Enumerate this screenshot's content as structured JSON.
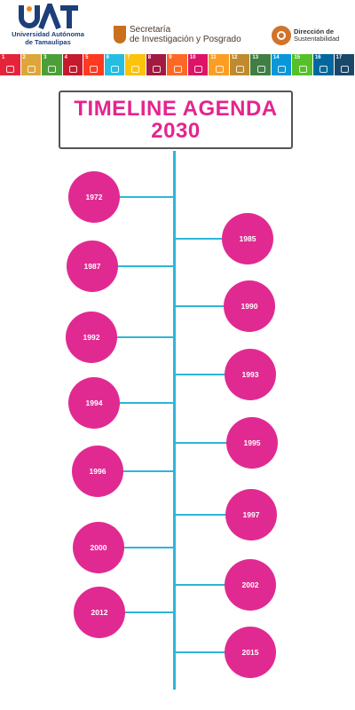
{
  "header": {
    "uat_mark": "UAT",
    "uat_name_line1": "Universidad Autónoma",
    "uat_name_line2": "de Tamaulipas",
    "secretaria_line1": "Secretaría",
    "secretaria_line2": "de Investigación y Posgrado",
    "direccion_line1": "Dirección de",
    "direccion_line2": "Sustentabilidad",
    "brand_colors": {
      "uat_blue": "#1c3f7a",
      "uat_orange": "#f08a1c",
      "secretaria_orange": "#c8701e"
    }
  },
  "sdg_goals": [
    {
      "num": "1",
      "color": "#e5243b"
    },
    {
      "num": "2",
      "color": "#dda63a"
    },
    {
      "num": "3",
      "color": "#4c9f38"
    },
    {
      "num": "4",
      "color": "#c5192d"
    },
    {
      "num": "5",
      "color": "#ff3a21"
    },
    {
      "num": "6",
      "color": "#26bde2"
    },
    {
      "num": "7",
      "color": "#fcc30b"
    },
    {
      "num": "8",
      "color": "#a21942"
    },
    {
      "num": "9",
      "color": "#fd6925"
    },
    {
      "num": "10",
      "color": "#dd1367"
    },
    {
      "num": "11",
      "color": "#fd9d24"
    },
    {
      "num": "12",
      "color": "#bf8b2e"
    },
    {
      "num": "13",
      "color": "#3f7e44"
    },
    {
      "num": "14",
      "color": "#0a97d9"
    },
    {
      "num": "15",
      "color": "#56c02b"
    },
    {
      "num": "16",
      "color": "#00689d"
    },
    {
      "num": "17",
      "color": "#19486a"
    }
  ],
  "title": {
    "line1": "TIMELINE AGENDA",
    "line2": "2030",
    "color": "#e3258f"
  },
  "timeline": {
    "axis_color": "#2db6d8",
    "bubble_color": "#e12a91",
    "left": [
      {
        "year": "1972"
      },
      {
        "year": "1987"
      },
      {
        "year": "1992"
      },
      {
        "year": "1994"
      },
      {
        "year": "1996"
      },
      {
        "year": "2000"
      },
      {
        "year": "2012"
      }
    ],
    "right": [
      {
        "year": "1985"
      },
      {
        "year": "1990"
      },
      {
        "year": "1993"
      },
      {
        "year": "1995"
      },
      {
        "year": "1997"
      },
      {
        "year": "2002"
      },
      {
        "year": "2015"
      }
    ]
  }
}
